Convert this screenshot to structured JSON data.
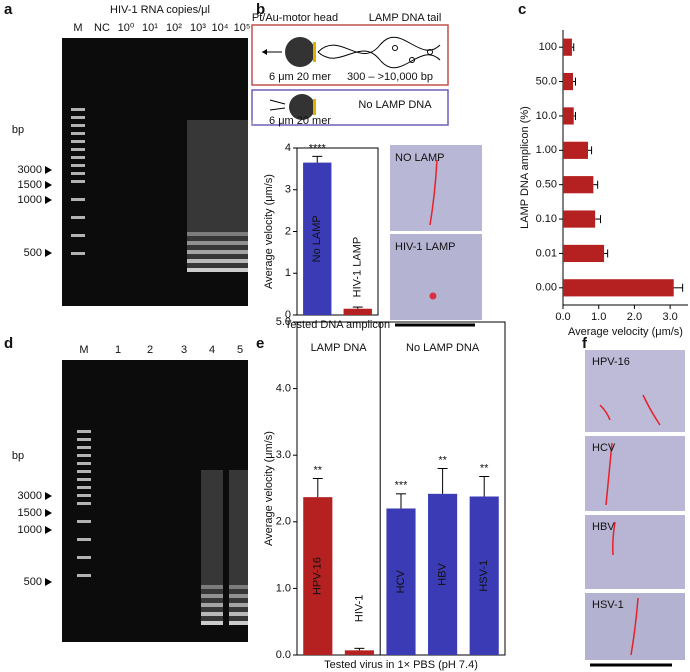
{
  "panel_letters": [
    "a",
    "b",
    "c",
    "d",
    "e",
    "f"
  ],
  "gel_a": {
    "title": "HIV-1 RNA copies/μl",
    "lanes": [
      "M",
      "NC",
      "10⁰",
      "10¹",
      "10²",
      "10³",
      "10⁴",
      "10⁵"
    ],
    "bp_label": "bp",
    "markers": [
      "3000",
      "1500",
      "1000",
      "500"
    ]
  },
  "gel_d": {
    "lanes": [
      "M",
      "1",
      "2",
      "3",
      "4",
      "5"
    ],
    "bp_label": "bp",
    "markers": [
      "3000",
      "1500",
      "1000",
      "500"
    ]
  },
  "diagram_b": {
    "head_label": "Pt/Au-motor head",
    "tail_label": "LAMP DNA tail",
    "size_label": "6 μm 20 mer",
    "tail_size": "300 – >10,000 bp",
    "size_label_2": "6 μm 20 mer",
    "no_lamp": "No LAMP DNA"
  },
  "images_b": [
    "NO LAMP",
    "HIV-1 LAMP"
  ],
  "images_f": [
    "HPV-16",
    "HCV",
    "HBV",
    "HSV-1"
  ],
  "chart_data": [
    {
      "type": "bar",
      "ylabel": "Average velocity (μm/s)",
      "xlabel": "Tested DNA amplicon",
      "categories": [
        "No LAMP",
        "HIV-1 LAMP"
      ],
      "values": [
        3.65,
        0.15
      ],
      "errors": [
        0.15,
        0.04
      ],
      "colors": [
        "#3b3bb5",
        "#b52020"
      ],
      "significance": [
        "****",
        null
      ],
      "ylim": [
        0,
        4
      ],
      "yticks": [
        0,
        1,
        2,
        3,
        4
      ]
    },
    {
      "type": "barh",
      "ylabel": "LAMP DNA amplicon (%)",
      "xlabel": "Average velocity (μm/s)",
      "categories": [
        "100",
        "50.0",
        "10.0",
        "1.00",
        "0.50",
        "0.10",
        "0.01",
        "0.00"
      ],
      "values": [
        0.25,
        0.28,
        0.3,
        0.7,
        0.85,
        0.9,
        1.15,
        3.1
      ],
      "errors": [
        0.05,
        0.07,
        0.05,
        0.1,
        0.12,
        0.15,
        0.1,
        0.25
      ],
      "color": "#b52020",
      "xlim": [
        0,
        3.5
      ],
      "xticks": [
        {
          "value": 0,
          "label": "0.0"
        },
        {
          "value": 1,
          "label": "1.0"
        },
        {
          "value": 2,
          "label": "2.0"
        },
        {
          "value": 3,
          "label": "3.0"
        }
      ]
    },
    {
      "type": "bar",
      "ylabel": "Average velocity (μm/s)",
      "xlabel": "Tested virus in 1× PBS (pH 7.4)",
      "group_labels": [
        "LAMP DNA",
        "No LAMP DNA"
      ],
      "categories": [
        "HPV-16",
        "HIV-1",
        "HCV",
        "HBV",
        "HSV-1"
      ],
      "values": [
        2.37,
        0.07,
        2.2,
        2.42,
        2.38
      ],
      "errors": [
        0.28,
        0.03,
        0.22,
        0.38,
        0.3
      ],
      "colors": [
        "#b52020",
        "#b52020",
        "#3b3bb5",
        "#3b3bb5",
        "#3b3bb5"
      ],
      "significance": [
        "**",
        null,
        "***",
        "**",
        "**"
      ],
      "ylim": [
        0,
        5
      ],
      "yticks": [
        {
          "value": 0,
          "label": "0.0"
        },
        {
          "value": 1,
          "label": "1.0"
        },
        {
          "value": 2,
          "label": "2.0"
        },
        {
          "value": 3,
          "label": "3.0"
        },
        {
          "value": 4,
          "label": "4.0"
        },
        {
          "value": 5,
          "label": "5.0"
        }
      ]
    }
  ]
}
